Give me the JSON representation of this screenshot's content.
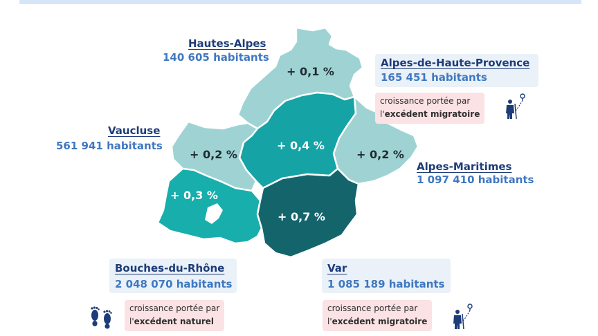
{
  "colors": {
    "var": "#14646c",
    "growth_04": "#16a3a6",
    "growth_03": "#18aeac",
    "growth_low": "#9fd3d3",
    "name_text": "#1d3c78",
    "pop_text": "#3f78c0",
    "note_bg": "#fbe2e4"
  },
  "departments": {
    "hautes_alpes": {
      "name": "Hautes-Alpes",
      "population": "140 605 habitants",
      "growth": "+ 0,1 %"
    },
    "alpes_de_haute_provence": {
      "name": "Alpes-de-Haute-Provence",
      "population": "165 451 habitants",
      "growth": "+ 0,4 %"
    },
    "vaucluse": {
      "name": "Vaucluse",
      "population": "561 941 habitants",
      "growth": "+ 0,2 %"
    },
    "alpes_maritimes": {
      "name": "Alpes-Maritimes",
      "population": "1 097 410 habitants",
      "growth": "+ 0,2 %"
    },
    "bouches_du_rhone": {
      "name": "Bouches-du-Rhône",
      "population": "2 048 070 habitants",
      "growth": "+ 0,3 %"
    },
    "var": {
      "name": "Var",
      "population": "1 085 189 habitants",
      "growth": "+ 0,7 %"
    }
  },
  "notes": {
    "alpes_de_haute_provence": {
      "prefix": "croissance portée par",
      "line2_prefix": "l'",
      "driver": "excédent migratoire",
      "icon": "migrant-walking-icon"
    },
    "bouches_du_rhone": {
      "prefix": "croissance portée par",
      "line2_prefix": "l'",
      "driver": "excédent naturel",
      "icon": "footprints-icon"
    },
    "var": {
      "prefix": "croissance portée par",
      "line2_prefix": "l'",
      "driver": "excédent migratoire",
      "icon": "migrant-walking-icon"
    }
  }
}
